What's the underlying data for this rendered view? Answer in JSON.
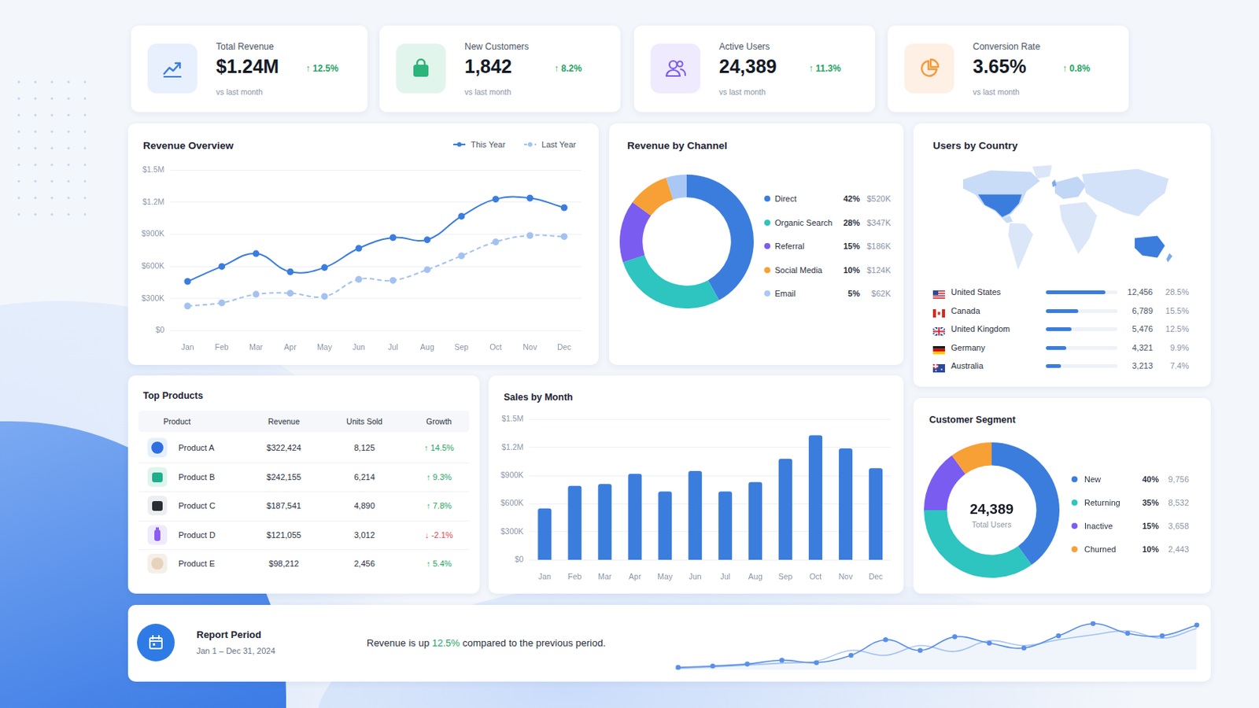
{
  "kpis": [
    {
      "title": "Total Revenue",
      "value": "$1.24M",
      "change": "↑ 12.5%",
      "note": "vs last month",
      "color": "#1fa463"
    },
    {
      "title": "New Customers",
      "value": "1,842",
      "change": "↑ 8.2%",
      "note": "vs last month",
      "color": "#1fa463"
    },
    {
      "title": "Active Users",
      "value": "24,389",
      "change": "↑ 11.3%",
      "note": "vs last month",
      "color": "#1fa463"
    },
    {
      "title": "Conversion Rate",
      "value": "3.65%",
      "change": "↑ 0.8%",
      "note": "vs last month",
      "color": "#1fa463"
    }
  ],
  "chart_data": [
    {
      "type": "line",
      "title": "Revenue Overview",
      "categories": [
        "Jan",
        "Feb",
        "Mar",
        "Apr",
        "May",
        "Jun",
        "Jul",
        "Aug",
        "Sep",
        "Oct",
        "Nov",
        "Dec"
      ],
      "series": [
        {
          "name": "This Year",
          "color": "#3b7ddd",
          "marker": "circle",
          "line_style": "solid",
          "values": [
            460000,
            600000,
            720000,
            550000,
            590000,
            770000,
            870000,
            850000,
            1070000,
            1230000,
            1240000,
            1150000
          ]
        },
        {
          "name": "Last Year",
          "color": "#a3c2f0",
          "marker": "circle",
          "line_style": "dashed",
          "values": [
            230000,
            260000,
            340000,
            350000,
            320000,
            480000,
            470000,
            570000,
            700000,
            830000,
            890000,
            880000
          ]
        }
      ],
      "ylim": [
        0,
        1500000
      ],
      "yticks": [
        {
          "value": 0,
          "label": "$0"
        },
        {
          "value": 300000,
          "label": "$300K"
        },
        {
          "value": 600000,
          "label": "$600K"
        },
        {
          "value": 900000,
          "label": "$900K"
        },
        {
          "value": 1200000,
          "label": "$1.2M"
        },
        {
          "value": 1500000,
          "label": "$1.5M"
        }
      ],
      "grid": true,
      "legend": "top-right"
    },
    {
      "type": "doughnut",
      "title": "Revenue by Channel",
      "categories": [
        "Direct",
        "Organic Search",
        "Referral",
        "Social Media",
        "Email"
      ],
      "values": [
        42,
        28,
        15,
        10,
        5
      ],
      "value_labels": [
        "42%",
        "28%",
        "15%",
        "10%",
        "5%"
      ],
      "amounts": [
        "$520K",
        "$347K",
        "$186K",
        "$124K",
        "$62K"
      ],
      "colors": [
        "#3b7ddd",
        "#2ec4c0",
        "#7b5cf0",
        "#f7a035",
        "#a9c8f5"
      ],
      "legend": "right"
    },
    {
      "type": "bar",
      "title": "Sales by Month",
      "categories": [
        "Jan",
        "Feb",
        "Mar",
        "Apr",
        "May",
        "Jun",
        "Jul",
        "Aug",
        "Sep",
        "Oct",
        "Nov",
        "Dec"
      ],
      "values": [
        550000,
        790000,
        810000,
        920000,
        730000,
        950000,
        730000,
        830000,
        1080000,
        1330000,
        1190000,
        980000
      ],
      "color": "#3b7ddd",
      "ylim": [
        0,
        1500000
      ],
      "yticks": [
        {
          "value": 0,
          "label": "$0"
        },
        {
          "value": 300000,
          "label": "$300K"
        },
        {
          "value": 600000,
          "label": "$600K"
        },
        {
          "value": 900000,
          "label": "$900K"
        },
        {
          "value": 1200000,
          "label": "$1.2M"
        },
        {
          "value": 1500000,
          "label": "$1.5M"
        }
      ],
      "grid": true
    },
    {
      "type": "doughnut",
      "title": "Customer Segment",
      "center_value": "24,389",
      "center_label": "Total Users",
      "categories": [
        "New",
        "Returning",
        "Inactive",
        "Churned"
      ],
      "values": [
        40,
        35,
        15,
        10
      ],
      "value_labels": [
        "40%",
        "35%",
        "15%",
        "10%"
      ],
      "counts": [
        "9,756",
        "8,532",
        "3,658",
        "2,443"
      ],
      "colors": [
        "#3b7ddd",
        "#2ec4c0",
        "#7b5cf0",
        "#f7a035"
      ],
      "legend": "right"
    },
    {
      "type": "line",
      "categories": [
        null,
        null,
        null,
        null,
        null,
        null,
        null,
        null,
        null,
        null,
        null,
        null,
        null,
        null,
        null,
        null
      ],
      "series": [
        {
          "color": "#5b8fe6",
          "marker": "circle",
          "line_style": "solid",
          "values": [
            5,
            8,
            12,
            20,
            15,
            30,
            62,
            40,
            68,
            55,
            45,
            70,
            95,
            75,
            70,
            92
          ]
        },
        {
          "color": "#a9c6f3",
          "marker": "none",
          "line_style": "solid",
          "values": [
            3,
            6,
            10,
            14,
            18,
            40,
            30,
            50,
            38,
            60,
            50,
            62,
            72,
            80,
            65,
            85
          ]
        }
      ],
      "ylim": [
        0,
        100
      ],
      "tick_labels": false,
      "grid": false
    }
  ],
  "users_by_country": {
    "title": "Users by Country",
    "rows": [
      {
        "country": "United States",
        "users": "12,456",
        "share": 28.5,
        "share_label": "28.5%"
      },
      {
        "country": "Canada",
        "users": "6,789",
        "share": 15.5,
        "share_label": "15.5%"
      },
      {
        "country": "United Kingdom",
        "users": "5,476",
        "share": 12.5,
        "share_label": "12.5%"
      },
      {
        "country": "Germany",
        "users": "4,321",
        "share": 9.9,
        "share_label": "9.9%"
      },
      {
        "country": "Australia",
        "users": "3,213",
        "share": 7.4,
        "share_label": "7.4%"
      }
    ]
  },
  "top_products": {
    "title": "Top Products",
    "columns": [
      "Product",
      "Revenue",
      "Units Sold",
      "Growth"
    ],
    "rows": [
      {
        "product": "Product A",
        "revenue": "$322,424",
        "units": "8,125",
        "growth": "↑ 14.5%",
        "color": "#1fa463"
      },
      {
        "product": "Product B",
        "revenue": "$242,155",
        "units": "6,214",
        "growth": "↑ 9.3%",
        "color": "#1fa463"
      },
      {
        "product": "Product C",
        "revenue": "$187,541",
        "units": "4,890",
        "growth": "↑ 7.8%",
        "color": "#1fa463"
      },
      {
        "product": "Product D",
        "revenue": "$121,055",
        "units": "3,012",
        "growth": "↓ -2.1%",
        "color": "#e5484d"
      },
      {
        "product": "Product E",
        "revenue": "$98,212",
        "units": "2,456",
        "growth": "↑ 5.4%",
        "color": "#1fa463"
      }
    ]
  },
  "report": {
    "title": "Report Period",
    "period": "Jan 1 – Dec 31, 2024",
    "text_before": "Revenue is up ",
    "highlight": "12.5%",
    "text_after": " compared to the previous period.",
    "color": "#1fa463"
  }
}
